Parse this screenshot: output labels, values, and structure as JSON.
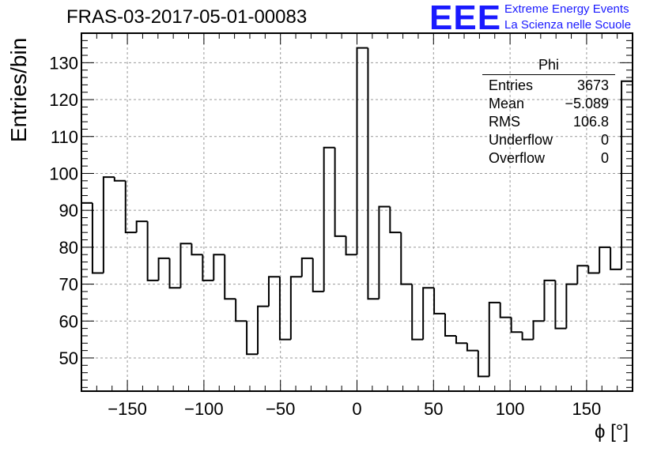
{
  "title": "FRAS-03-2017-05-01-00083",
  "logo": {
    "mark": "EEE",
    "line1": "Extreme Energy Events",
    "line2": "La Scienza nelle Scuole"
  },
  "stats": {
    "name": "Phi",
    "rows": [
      {
        "label": "Entries",
        "value": "3673"
      },
      {
        "label": "Mean",
        "value": "−5.089"
      },
      {
        "label": "RMS",
        "value": "106.8"
      },
      {
        "label": "Underflow",
        "value": "0"
      },
      {
        "label": "Overflow",
        "value": "0"
      }
    ]
  },
  "chart_data": {
    "type": "histogram",
    "title": "FRAS-03-2017-05-01-00083",
    "xlabel": "ϕ [°]",
    "ylabel": "Entries/bin",
    "xlim": [
      -180,
      180
    ],
    "ylim": [
      41,
      138
    ],
    "grid": true,
    "bin_width": 7.2,
    "bin_edges_start": -180,
    "values": [
      92,
      73,
      99,
      98,
      84,
      87,
      71,
      77,
      69,
      81,
      78,
      71,
      78,
      66,
      60,
      51,
      64,
      72,
      55,
      72,
      77,
      68,
      107,
      83,
      78,
      134,
      66,
      91,
      84,
      70,
      55,
      69,
      62,
      56,
      54,
      52,
      45,
      65,
      61,
      57,
      55,
      60,
      71,
      58,
      70,
      75,
      73,
      80,
      74,
      125
    ],
    "xticks": [
      -150,
      -100,
      -50,
      0,
      50,
      100,
      150
    ],
    "xtick_labels": [
      "−150",
      "−100",
      "−50",
      "0",
      "50",
      "100",
      "150"
    ],
    "yticks": [
      50,
      60,
      70,
      80,
      90,
      100,
      110,
      120,
      130
    ],
    "ytick_labels": [
      "50",
      "60",
      "70",
      "80",
      "90",
      "100",
      "110",
      "120",
      "130"
    ]
  }
}
